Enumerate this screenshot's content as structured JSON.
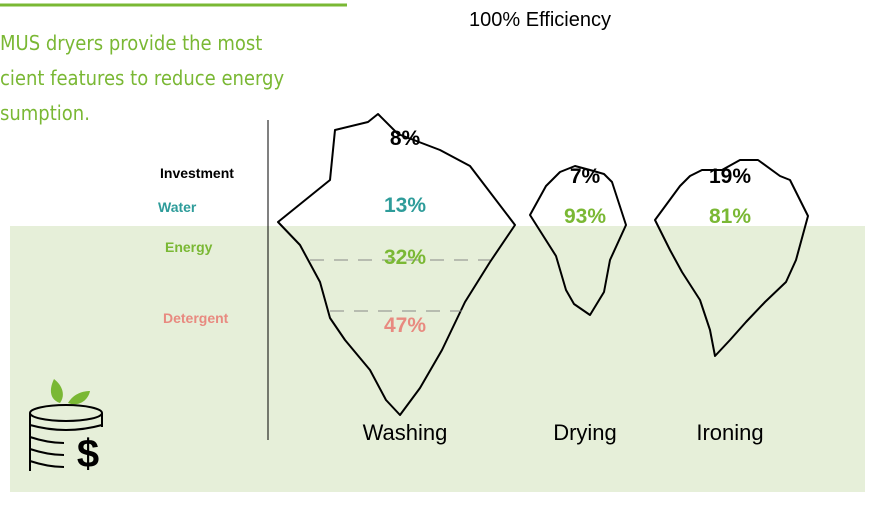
{
  "headline": [
    "MUS dryers provide the most",
    "cient features to reduce energy",
    "sumption."
  ],
  "title": "100% Efficiency",
  "legend": [
    {
      "label": "Investment",
      "color": "#000000"
    },
    {
      "label": "Water",
      "color": "#2e9c9a"
    },
    {
      "label": "Energy",
      "color": "#7ab834"
    },
    {
      "label": "Detergent",
      "color": "#e88a80"
    }
  ],
  "icebergs": [
    {
      "name": "Washing",
      "shares": [
        {
          "text": "8%",
          "color": "#000000"
        },
        {
          "text": "13%",
          "color": "#2e9c9a"
        },
        {
          "text": "32%",
          "color": "#7ab834"
        },
        {
          "text": "47%",
          "color": "#e88a80"
        }
      ]
    },
    {
      "name": "Drying",
      "shares": [
        {
          "text": "7%",
          "color": "#000000"
        },
        {
          "text": "93%",
          "color": "#7ab834"
        }
      ]
    },
    {
      "name": "Ironing",
      "shares": [
        {
          "text": "19%",
          "color": "#000000"
        },
        {
          "text": "81%",
          "color": "#7ab834"
        }
      ]
    }
  ]
}
